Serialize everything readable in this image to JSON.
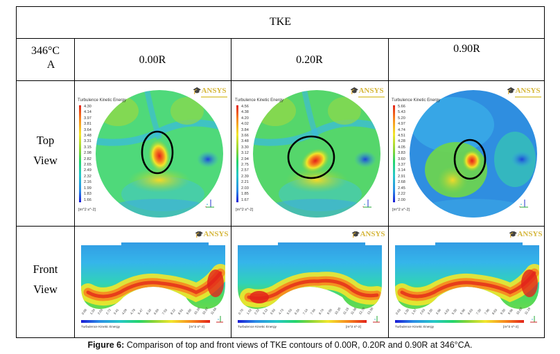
{
  "table": {
    "header": "TKE",
    "corner_label": [
      "346°C",
      "A"
    ],
    "columns": [
      "0.00R",
      "0.20R",
      "0.90R"
    ],
    "rows": [
      {
        "label": [
          "Top",
          "View"
        ]
      },
      {
        "label": [
          "Front",
          "View"
        ]
      }
    ]
  },
  "panels": {
    "logo_text": "ANSYS",
    "legend_title": "Turbulence Kinetic Energy",
    "unit": "[m^2 s^-2]",
    "top": [
      {
        "case": "0.00R",
        "ticks": [
          "4.30",
          "4.14",
          "3.97",
          "3.81",
          "3.64",
          "3.48",
          "3.31",
          "3.15",
          "2.98",
          "2.82",
          "2.65",
          "2.49",
          "2.32",
          "2.16",
          "1.99",
          "1.83",
          "1.66"
        ]
      },
      {
        "case": "0.20R",
        "ticks": [
          "4.56",
          "4.38",
          "4.20",
          "4.02",
          "3.84",
          "3.66",
          "3.48",
          "3.30",
          "3.12",
          "2.94",
          "2.75",
          "2.57",
          "2.39",
          "2.21",
          "2.03",
          "1.85",
          "1.67"
        ]
      },
      {
        "case": "0.90R",
        "ticks": [
          "5.66",
          "5.43",
          "5.20",
          "4.97",
          "4.74",
          "4.51",
          "4.28",
          "4.05",
          "3.83",
          "3.60",
          "3.37",
          "3.14",
          "2.91",
          "2.68",
          "2.45",
          "2.22",
          "2.00"
        ]
      }
    ],
    "front": [
      {
        "case": "0.00R",
        "ticks": [
          "0.66",
          "1.34",
          "2.03",
          "2.72",
          "3.41",
          "4.09",
          "4.78",
          "5.47",
          "6.16",
          "6.84",
          "7.53",
          "8.22",
          "8.91",
          "9.60",
          "10.28",
          "10.97",
          "11.66"
        ]
      },
      {
        "case": "0.20R",
        "ticks": [
          "0.70",
          "1.52",
          "2.32",
          "3.13",
          "3.93",
          "4.73",
          "5.53",
          "6.34",
          "7.14",
          "7.94",
          "8.74",
          "9.55",
          "10.35",
          "11.15",
          "11.96",
          "12.76",
          "13.56"
        ]
      },
      {
        "case": "0.90R",
        "ticks": [
          "0.63",
          "1.30",
          "1.97",
          "2.63",
          "3.30",
          "3.96",
          "4.63",
          "5.30",
          "5.96",
          "6.63",
          "7.30",
          "7.96",
          "8.63",
          "9.30",
          "9.96",
          "10.63",
          "11.29"
        ]
      }
    ]
  },
  "caption": {
    "label": "Figure 6:",
    "text": " Comparison of top and front views of TKE contours of 0.00R, 0.20R and 0.90R at 346°CA."
  }
}
